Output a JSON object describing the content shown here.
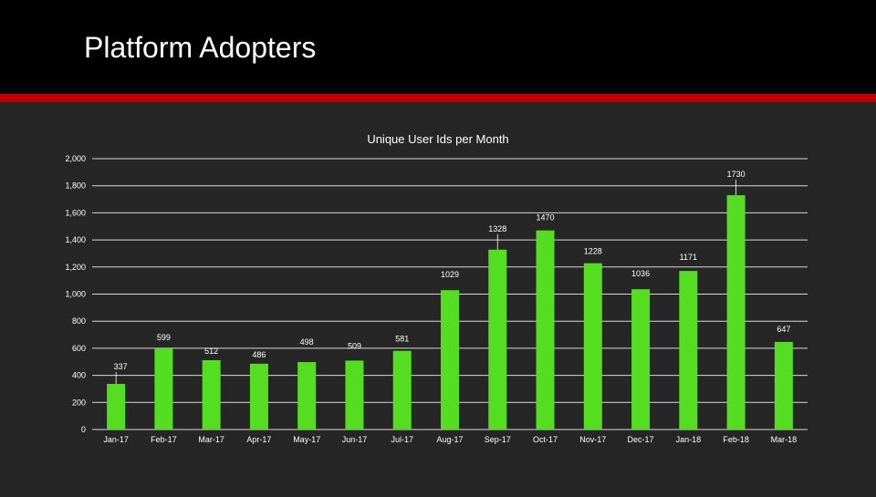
{
  "slide": {
    "title": "Platform Adopters"
  },
  "colors": {
    "background": "#262626",
    "header": "#000000",
    "accent": "#c00000",
    "bar": "#55dd22",
    "text": "#ffffff",
    "grid": "#d9d9d9"
  },
  "chart_data": {
    "type": "bar",
    "title": "Unique User Ids per Month",
    "xlabel": "",
    "ylabel": "",
    "ylim": [
      0,
      2000
    ],
    "yticks": [
      0,
      200,
      400,
      600,
      800,
      1000,
      1200,
      1400,
      1600,
      1800,
      2000
    ],
    "ytick_labels": [
      "0",
      "200",
      "400",
      "600",
      "800",
      "1,000",
      "1,200",
      "1,400",
      "1,600",
      "1,800",
      "2,000"
    ],
    "grid": true,
    "categories": [
      "Jan-17",
      "Feb-17",
      "Mar-17",
      "Apr-17",
      "May-17",
      "Jun-17",
      "Jul-17",
      "Aug-17",
      "Sep-17",
      "Oct-17",
      "Nov-17",
      "Dec-17",
      "Jan-18",
      "Feb-18",
      "Mar-18"
    ],
    "values": [
      337,
      599,
      512,
      486,
      498,
      509,
      581,
      1029,
      1328,
      1470,
      1228,
      1036,
      1171,
      1730,
      647
    ],
    "data_labels": [
      "337",
      "599",
      "512",
      "486",
      "498",
      "509",
      "581",
      "1029",
      "1328",
      "1470",
      "1228",
      "1036",
      "1171",
      "1730",
      "647"
    ]
  }
}
